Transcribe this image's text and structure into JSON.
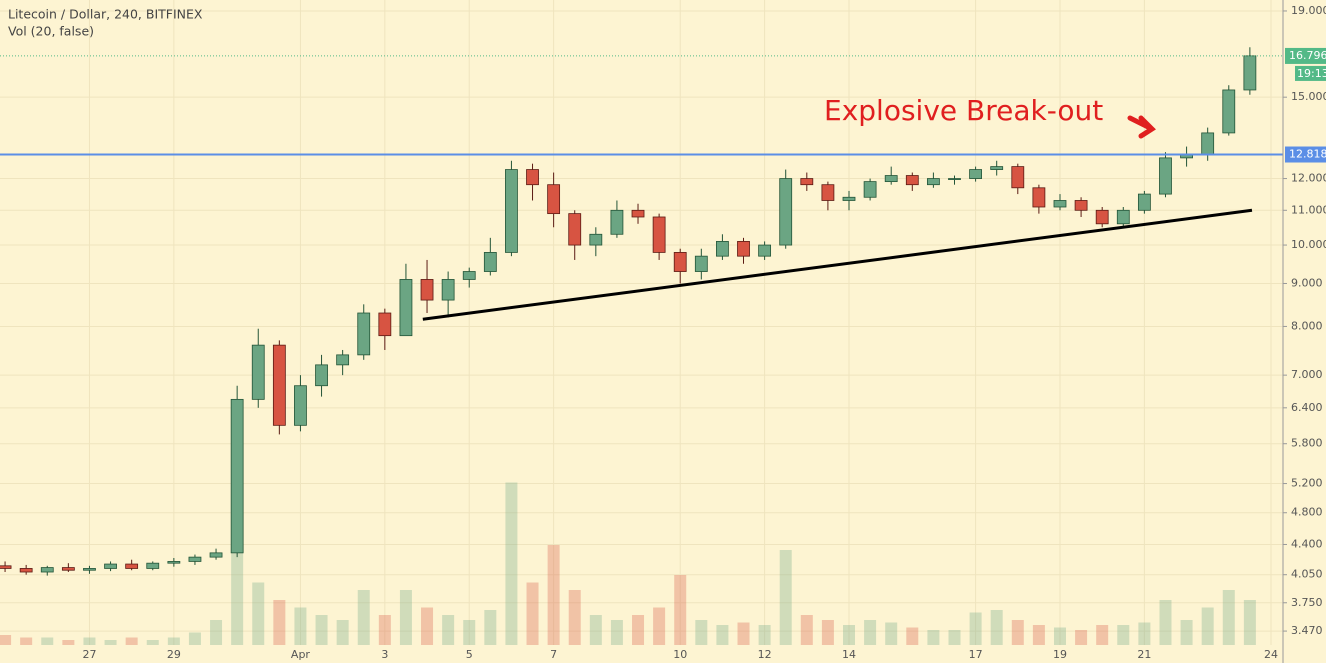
{
  "chart_data": {
    "type": "candlestick",
    "title": "Litecoin / Dollar, 240, BITFINEX",
    "subtitle": "Vol (20, false)",
    "log_scale": true,
    "grid": true,
    "categories": [
      null,
      null,
      null,
      null,
      "27",
      null,
      null,
      null,
      "29",
      null,
      null,
      null,
      null,
      null,
      "Apr",
      null,
      null,
      null,
      "3",
      null,
      null,
      null,
      "5",
      null,
      null,
      null,
      "7",
      null,
      null,
      null,
      null,
      null,
      "10",
      null,
      null,
      null,
      "12",
      null,
      null,
      null,
      "14",
      null,
      null,
      null,
      null,
      null,
      "17",
      null,
      null,
      null,
      "19",
      null,
      null,
      null,
      "21",
      null,
      null,
      null,
      null,
      null,
      "24"
    ],
    "xlim": [
      -0.24,
      60.57
    ],
    "ylim": [
      3.34,
      19.58
    ],
    "yticks": [
      {
        "value": 19,
        "label": "19.000"
      },
      {
        "value": 15,
        "label": "15.000"
      },
      {
        "value": 12,
        "label": "12.000"
      },
      {
        "value": 11,
        "label": "11.000"
      },
      {
        "value": 10,
        "label": "10.000"
      },
      {
        "value": 9,
        "label": "9.000"
      },
      {
        "value": 8,
        "label": "8.000"
      },
      {
        "value": 7,
        "label": "7.000"
      },
      {
        "value": 6.4,
        "label": "6.400"
      },
      {
        "value": 5.8,
        "label": "5.800"
      },
      {
        "value": 5.2,
        "label": "5.200"
      },
      {
        "value": 4.8,
        "label": "4.800"
      },
      {
        "value": 4.4,
        "label": "4.400"
      },
      {
        "value": 4.05,
        "label": "4.050"
      },
      {
        "value": 3.75,
        "label": "3.750"
      },
      {
        "value": 3.47,
        "label": "3.470"
      }
    ],
    "up_color": "#6ba583",
    "down_color": "#d75442",
    "ohlc": {
      "open": [
        4.15,
        4.12,
        4.08,
        4.13,
        4.1,
        4.12,
        4.17,
        4.12,
        4.18,
        4.2,
        4.25,
        4.3,
        6.55,
        7.6,
        6.1,
        6.8,
        7.2,
        7.4,
        8.3,
        7.8,
        9.1,
        8.6,
        9.1,
        9.3,
        9.8,
        12.3,
        11.8,
        10.9,
        10.0,
        10.3,
        11.0,
        10.8,
        9.8,
        9.3,
        9.7,
        10.1,
        9.7,
        10.0,
        12.0,
        11.8,
        11.3,
        11.4,
        11.9,
        12.1,
        11.8,
        12.0,
        12.0,
        12.3,
        12.4,
        11.7,
        11.1,
        11.3,
        11.0,
        10.6,
        11.0,
        11.5,
        12.7,
        12.8,
        13.6,
        15.3,
        null
      ],
      "high": [
        4.2,
        4.16,
        4.15,
        4.18,
        4.15,
        4.2,
        4.22,
        4.2,
        4.24,
        4.28,
        4.35,
        6.8,
        7.95,
        7.7,
        7.0,
        7.4,
        7.5,
        8.5,
        8.4,
        9.5,
        9.6,
        9.3,
        9.4,
        10.2,
        12.6,
        12.5,
        12.2,
        11.0,
        10.5,
        11.3,
        11.2,
        10.9,
        9.9,
        9.9,
        10.3,
        10.2,
        10.1,
        12.3,
        12.2,
        11.9,
        11.6,
        12.0,
        12.4,
        12.2,
        12.2,
        12.1,
        12.4,
        12.6,
        12.5,
        11.8,
        11.5,
        11.4,
        11.1,
        11.1,
        11.6,
        12.9,
        13.1,
        13.8,
        15.5,
        17.2,
        null
      ],
      "low": [
        4.08,
        4.05,
        4.04,
        4.08,
        4.06,
        4.09,
        4.1,
        4.1,
        4.14,
        4.16,
        4.22,
        4.25,
        6.4,
        5.95,
        6.0,
        6.6,
        7.0,
        7.3,
        7.5,
        7.8,
        8.3,
        8.2,
        8.9,
        9.2,
        9.7,
        11.3,
        10.5,
        9.6,
        9.7,
        10.2,
        10.6,
        9.6,
        9.0,
        9.1,
        9.6,
        9.5,
        9.6,
        9.9,
        11.6,
        11.0,
        11.0,
        11.3,
        11.8,
        11.6,
        11.7,
        11.8,
        11.9,
        12.1,
        11.5,
        10.9,
        11.0,
        10.8,
        10.5,
        10.5,
        10.9,
        11.4,
        12.4,
        12.6,
        13.5,
        15.1,
        null
      ],
      "close": [
        4.12,
        4.08,
        4.13,
        4.1,
        4.12,
        4.17,
        4.12,
        4.18,
        4.2,
        4.25,
        4.3,
        6.55,
        7.6,
        6.1,
        6.8,
        7.2,
        7.4,
        8.3,
        7.8,
        9.1,
        8.6,
        9.1,
        9.3,
        9.8,
        12.3,
        11.8,
        10.9,
        10.0,
        10.3,
        11.0,
        10.8,
        9.8,
        9.3,
        9.7,
        10.1,
        9.7,
        10.0,
        12.0,
        11.8,
        11.3,
        11.4,
        11.9,
        12.1,
        11.8,
        12.0,
        12.0,
        12.3,
        12.4,
        11.7,
        11.1,
        11.3,
        11.0,
        10.6,
        11.0,
        11.5,
        12.7,
        12.8,
        13.6,
        15.3,
        16.8,
        null
      ]
    },
    "volume": {
      "axis": "y2",
      "values": [
        4,
        3,
        3,
        2,
        3,
        2,
        3,
        2,
        3,
        5,
        10,
        50,
        25,
        18,
        15,
        12,
        10,
        22,
        12,
        22,
        15,
        12,
        10,
        14,
        65,
        25,
        40,
        22,
        12,
        10,
        12,
        15,
        28,
        10,
        8,
        9,
        8,
        38,
        12,
        10,
        8,
        10,
        9,
        7,
        6,
        6,
        13,
        14,
        10,
        8,
        7,
        6,
        8,
        8,
        9,
        18,
        10,
        15,
        22,
        18,
        null
      ]
    },
    "y2lim": [
      0,
      100
    ],
    "current_price": 16.796,
    "countdown": "19:13",
    "resistance": 12.818,
    "trendline": {
      "x": [
        19.8,
        59.1
      ],
      "y": [
        8.16,
        11.0
      ]
    },
    "annotation": "Explosive Break-out"
  }
}
